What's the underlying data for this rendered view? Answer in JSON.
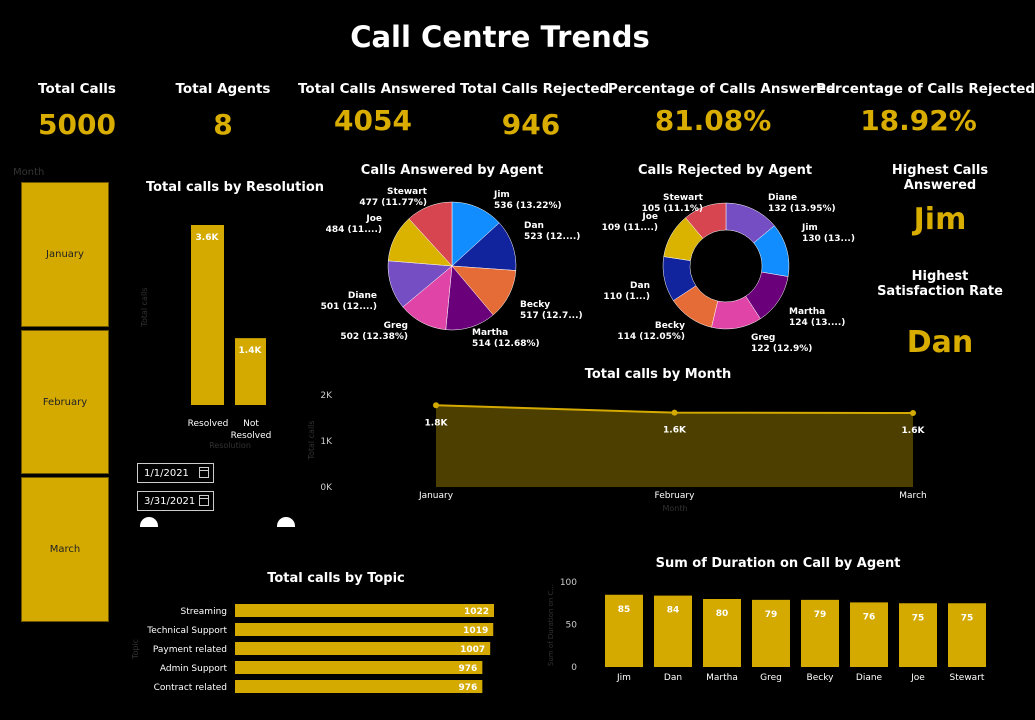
{
  "title": "Call Centre Trends",
  "kpis": [
    {
      "label": "Total Calls",
      "value": "5000"
    },
    {
      "label": "Total Agents",
      "value": "8"
    },
    {
      "label": "Total Calls Answered",
      "value": "4054"
    },
    {
      "label": "Total Calls Rejected",
      "value": "946"
    },
    {
      "label": "Percentage of Calls Answered",
      "value": "81.08%"
    },
    {
      "label": "Percentage of Calls Rejected",
      "value": "18.92%"
    }
  ],
  "month_slicer": {
    "title": "Month",
    "items": [
      "January",
      "February",
      "March"
    ]
  },
  "date_range": {
    "start": "1/1/2021",
    "end": "3/31/2021"
  },
  "highlights": {
    "calls_label": "Highest Calls Answered",
    "calls_value": "Jim",
    "sat_label": "Highest Satisfaction Rate",
    "sat_value": "Dan"
  },
  "colors": {
    "accent": "#d9ad00",
    "bar": "#d4aa00",
    "area": "#4d3f00"
  },
  "chart_data": [
    {
      "type": "bar",
      "title": "Total calls by Resolution",
      "xlabel": "Resolution",
      "ylabel": "Total calls",
      "categories": [
        "Resolved",
        "Not Resolved"
      ],
      "values": [
        3646,
        1354
      ],
      "data_labels": [
        "3.6K",
        "1.4K"
      ]
    },
    {
      "type": "pie",
      "title": "Calls Answered by Agent",
      "slices": [
        {
          "label": "Jim",
          "value": 536,
          "text": "536 (13.22%)",
          "color": "#118dff"
        },
        {
          "label": "Dan",
          "value": 523,
          "text": "523 (12....)",
          "color": "#12239e"
        },
        {
          "label": "Becky",
          "value": 517,
          "text": "517 (12.7...)",
          "color": "#e66c37"
        },
        {
          "label": "Martha",
          "value": 514,
          "text": "514 (12.68%)",
          "color": "#6b007b"
        },
        {
          "label": "Greg",
          "value": 502,
          "text": "502 (12.38%)",
          "color": "#e044a7"
        },
        {
          "label": "Diane",
          "value": 501,
          "text": "501 (12....)",
          "color": "#744ec2"
        },
        {
          "label": "Joe",
          "value": 484,
          "text": "484 (11....)",
          "color": "#d9b300"
        },
        {
          "label": "Stewart",
          "value": 477,
          "text": "477 (11.77%)",
          "color": "#d64550"
        }
      ]
    },
    {
      "type": "pie",
      "title": "Calls Rejected by Agent",
      "donut": true,
      "slices": [
        {
          "label": "Diane",
          "value": 132,
          "text": "132 (13.95%)",
          "color": "#744ec2"
        },
        {
          "label": "Jim",
          "value": 130,
          "text": "130 (13...)",
          "color": "#118dff"
        },
        {
          "label": "Martha",
          "value": 124,
          "text": "124 (13....)",
          "color": "#6b007b"
        },
        {
          "label": "Greg",
          "value": 122,
          "text": "122 (12.9%)",
          "color": "#e044a7"
        },
        {
          "label": "Becky",
          "value": 114,
          "text": "114 (12.05%)",
          "color": "#e66c37"
        },
        {
          "label": "Dan",
          "value": 110,
          "text": "110 (1...)",
          "color": "#12239e"
        },
        {
          "label": "Joe",
          "value": 109,
          "text": "109 (11....)",
          "color": "#d9b300"
        },
        {
          "label": "Stewart",
          "value": 105,
          "text": "105 (11.1%)",
          "color": "#d64550"
        }
      ]
    },
    {
      "type": "area",
      "title": "Total calls by Month",
      "xlabel": "Month",
      "ylabel": "Total calls",
      "categories": [
        "January",
        "February",
        "March"
      ],
      "values": [
        1776,
        1616,
        1608
      ],
      "data_labels": [
        "1.8K",
        "1.6K",
        "1.6K"
      ],
      "ylim": [
        0,
        2000
      ],
      "yticks": [
        "0K",
        "1K",
        "2K"
      ]
    },
    {
      "type": "bar",
      "orientation": "horizontal",
      "title": "Total calls by Topic",
      "ylabel": "Topic",
      "categories": [
        "Streaming",
        "Technical Support",
        "Payment related",
        "Admin Support",
        "Contract related"
      ],
      "values": [
        1022,
        1019,
        1007,
        976,
        976
      ]
    },
    {
      "type": "bar",
      "title": "Sum of Duration on Call by Agent",
      "ylabel": "Sum of Duration on C...",
      "categories": [
        "Jim",
        "Dan",
        "Martha",
        "Greg",
        "Becky",
        "Diane",
        "Joe",
        "Stewart"
      ],
      "values": [
        85,
        84,
        80,
        79,
        79,
        76,
        75,
        75
      ],
      "ylim": [
        0,
        100
      ],
      "yticks": [
        "0",
        "50",
        "100"
      ]
    }
  ]
}
